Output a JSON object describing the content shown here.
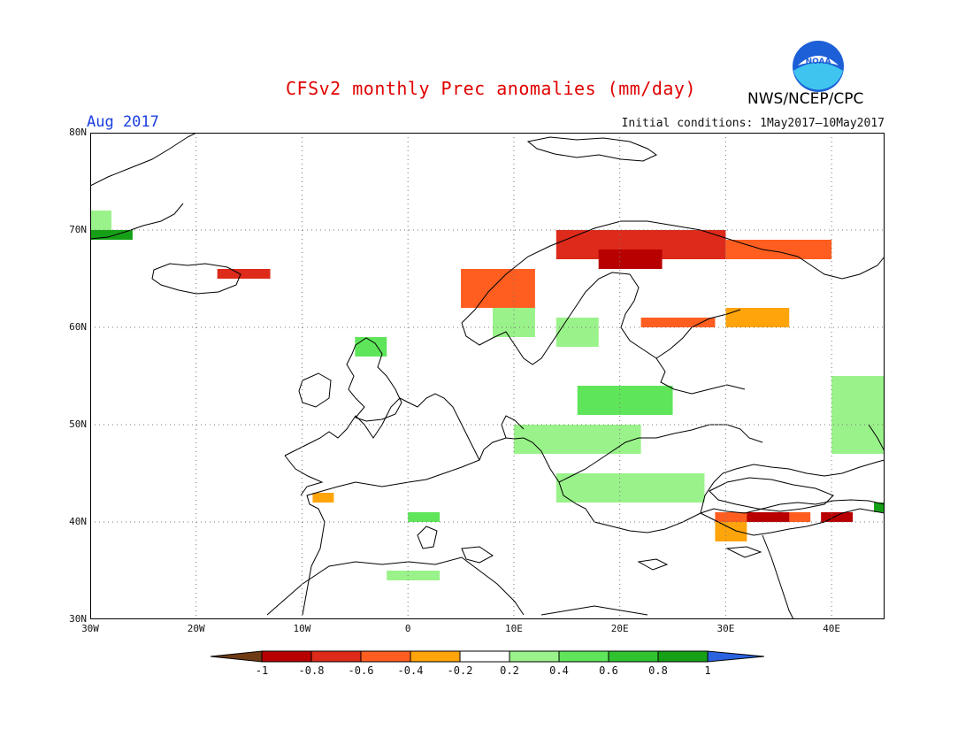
{
  "header": {
    "title": "CFSv2 monthly Prec anomalies (mm/day)",
    "period": "Aug 2017",
    "initial_conditions": "Initial conditions: 1May2017—10May2017",
    "agency": "NWS/NCEP/CPC",
    "logo": "noaa-logo-icon",
    "logo_text": "NOAA"
  },
  "map": {
    "lat_labels": [
      "80N",
      "70N",
      "60N",
      "50N",
      "40N",
      "30N"
    ],
    "lon_labels": [
      "30W",
      "20W",
      "10W",
      "0",
      "10E",
      "20E",
      "30E",
      "40E"
    ],
    "lon_range": [
      -30,
      45
    ],
    "lat_range": [
      30,
      80
    ],
    "grid": "dotted"
  },
  "legend": {
    "labels": [
      "-1",
      "-0.8",
      "-0.6",
      "-0.4",
      "-0.2",
      "0.2",
      "0.4",
      "0.6",
      "0.8",
      "1"
    ],
    "colors": [
      "#6e3b14",
      "#b80000",
      "#dd2a1a",
      "#ff5e20",
      "#ffa40a",
      "#ffffff",
      "#9af28a",
      "#5fe55a",
      "#30c330",
      "#16a016",
      "#2b62e0"
    ]
  },
  "chart_data": {
    "type": "heatmap",
    "title": "CFSv2 monthly Prec anomalies (mm/day)",
    "units": "mm/day",
    "anomaly_patches": [
      {
        "lon": [
          -30,
          -28
        ],
        "lat": [
          70,
          72
        ],
        "value": 0.3
      },
      {
        "lon": [
          -30,
          -26
        ],
        "lat": [
          69,
          70
        ],
        "value": 1.0
      },
      {
        "lon": [
          -18,
          -13
        ],
        "lat": [
          65,
          66
        ],
        "value": -0.6
      },
      {
        "lon": [
          5,
          12
        ],
        "lat": [
          62,
          66
        ],
        "value": -0.5
      },
      {
        "lon": [
          14,
          30
        ],
        "lat": [
          67,
          70
        ],
        "value": -0.6
      },
      {
        "lon": [
          18,
          24
        ],
        "lat": [
          66,
          68
        ],
        "value": -0.8
      },
      {
        "lon": [
          30,
          40
        ],
        "lat": [
          67,
          69
        ],
        "value": -0.4
      },
      {
        "lon": [
          30,
          36
        ],
        "lat": [
          60,
          62
        ],
        "value": -0.3
      },
      {
        "lon": [
          22,
          29
        ],
        "lat": [
          60,
          61
        ],
        "value": -0.5
      },
      {
        "lon": [
          8,
          12
        ],
        "lat": [
          59,
          62
        ],
        "value": 0.4
      },
      {
        "lon": [
          14,
          18
        ],
        "lat": [
          58,
          61
        ],
        "value": 0.3
      },
      {
        "lon": [
          16,
          25
        ],
        "lat": [
          51,
          54
        ],
        "value": 0.5
      },
      {
        "lon": [
          10,
          22
        ],
        "lat": [
          47,
          50
        ],
        "value": 0.4
      },
      {
        "lon": [
          14,
          28
        ],
        "lat": [
          42,
          45
        ],
        "value": 0.4
      },
      {
        "lon": [
          40,
          45
        ],
        "lat": [
          47,
          55
        ],
        "value": 0.3
      },
      {
        "lon": [
          -5,
          -2
        ],
        "lat": [
          57,
          59
        ],
        "value": 0.5
      },
      {
        "lon": [
          -9,
          -7
        ],
        "lat": [
          42,
          43
        ],
        "value": -0.3
      },
      {
        "lon": [
          0,
          3
        ],
        "lat": [
          40,
          41
        ],
        "value": 0.6
      },
      {
        "lon": [
          -2,
          3
        ],
        "lat": [
          34,
          35
        ],
        "value": 0.3
      },
      {
        "lon": [
          29,
          38
        ],
        "lat": [
          40,
          41
        ],
        "value": -0.5
      },
      {
        "lon": [
          32,
          36
        ],
        "lat": [
          40,
          41
        ],
        "value": -0.8
      },
      {
        "lon": [
          39,
          42
        ],
        "lat": [
          40,
          41
        ],
        "value": -0.8
      },
      {
        "lon": [
          29,
          32
        ],
        "lat": [
          38,
          40
        ],
        "value": -0.3
      },
      {
        "lon": [
          44,
          45
        ],
        "lat": [
          41,
          42
        ],
        "value": 1.0
      }
    ]
  }
}
